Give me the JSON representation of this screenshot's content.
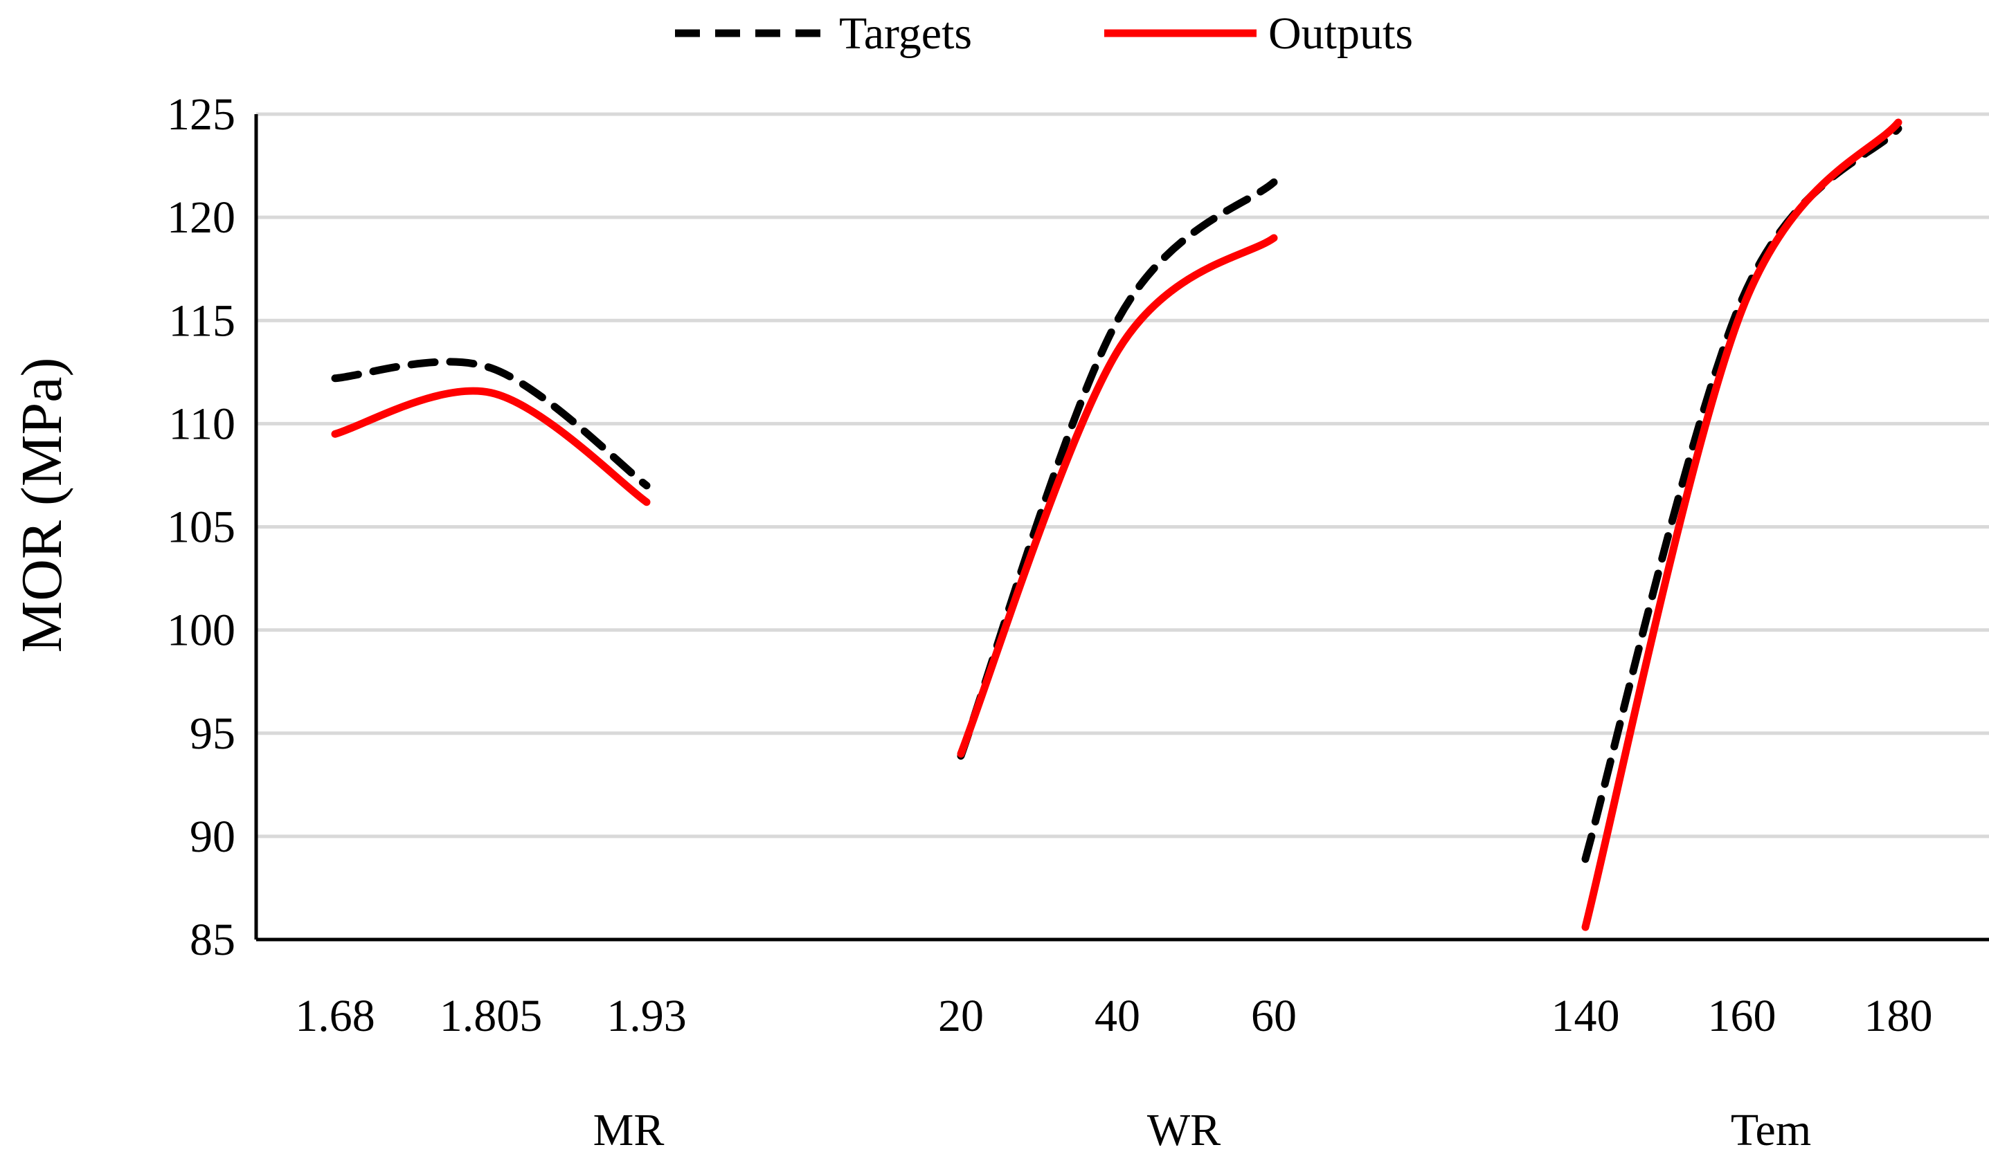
{
  "chart_data": {
    "type": "line",
    "ylabel": "MOR (MPa)",
    "ylim": [
      85,
      125
    ],
    "yticks": [
      85,
      90,
      95,
      100,
      105,
      110,
      115,
      120,
      125
    ],
    "grid": true,
    "legend": {
      "position": "top-center",
      "entries": [
        "Targets",
        "Outputs"
      ]
    },
    "groups": [
      {
        "name": "MR",
        "categories": [
          "1.68",
          "1.805",
          "1.93"
        ],
        "series": [
          {
            "name": "Targets",
            "values": [
              112.2,
              112.7,
              107.0
            ]
          },
          {
            "name": "Outputs",
            "values": [
              109.5,
              111.5,
              106.2
            ]
          }
        ]
      },
      {
        "name": "WR",
        "categories": [
          "20",
          "40",
          "60"
        ],
        "series": [
          {
            "name": "Targets",
            "values": [
              93.9,
              115.0,
              121.7
            ]
          },
          {
            "name": "Outputs",
            "values": [
              94.0,
              113.5,
              119.0
            ]
          }
        ]
      },
      {
        "name": "Tem",
        "categories": [
          "140",
          "160",
          "180"
        ],
        "series": [
          {
            "name": "Targets",
            "values": [
              88.9,
              116.0,
              124.3
            ]
          },
          {
            "name": "Outputs",
            "values": [
              85.6,
              115.5,
              124.6
            ]
          }
        ]
      }
    ],
    "styles": {
      "Targets": {
        "color": "#000000",
        "dashed": true
      },
      "Outputs": {
        "color": "#ff0000",
        "dashed": false
      }
    },
    "gridColor": "#d9d9d9",
    "axisColor": "#000000"
  }
}
